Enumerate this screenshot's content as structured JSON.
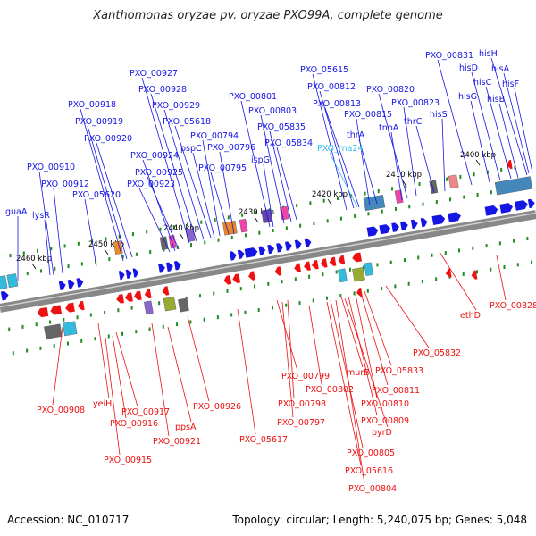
{
  "title": "Xanthomonas oryzae pv. oryzae PXO99A, complete genome",
  "accession": "Accession: NC_010717",
  "summary": "Topology: circular; Length: 5,240,075 bp; Genes: 5,048",
  "colors": {
    "forward_gene": "#1515e6",
    "reverse_gene": "#ee1111",
    "rna_label": "#33bbee",
    "backbone": "#888888",
    "tick": "#1f8a1f"
  },
  "kbp_ticks": [
    "2460 kbp",
    "2450 kbp",
    "2440 kbp",
    "2430 kbp",
    "2420 kbp",
    "2410 kbp",
    "2400 kbp"
  ],
  "top_labels": [
    {
      "text": "PXO_00927"
    },
    {
      "text": "PXO_00928"
    },
    {
      "text": "PXO_00929"
    },
    {
      "text": "PXO_05618"
    },
    {
      "text": "PXO_00794"
    },
    {
      "text": "pspC"
    },
    {
      "text": "PXO_00796"
    },
    {
      "text": "PXO_00795"
    },
    {
      "text": "PXO_00801"
    },
    {
      "text": "PXO_00803"
    },
    {
      "text": "PXO_05835"
    },
    {
      "text": "PXO_05834"
    },
    {
      "text": "ispG"
    },
    {
      "text": "PXO_05615"
    },
    {
      "text": "PXO_00812"
    },
    {
      "text": "PXO_00813"
    },
    {
      "text": "PXO_00815"
    },
    {
      "text": "PXO_00820"
    },
    {
      "text": "PXO_00823"
    },
    {
      "text": "PXO_00831"
    },
    {
      "text": "hisH"
    },
    {
      "text": "hisD"
    },
    {
      "text": "hisA"
    },
    {
      "text": "hisC"
    },
    {
      "text": "hisF"
    },
    {
      "text": "hisG"
    },
    {
      "text": "hisB"
    },
    {
      "text": "hisS"
    },
    {
      "text": "thrC"
    },
    {
      "text": "tnpA"
    },
    {
      "text": "thrA"
    },
    {
      "text": "PXO_rna24"
    },
    {
      "text": "PXO_00918"
    },
    {
      "text": "PXO_00919"
    },
    {
      "text": "PXO_00920"
    },
    {
      "text": "PXO_00924"
    },
    {
      "text": "PXO_00925"
    },
    {
      "text": "PXO_00923"
    },
    {
      "text": "PXO_00910"
    },
    {
      "text": "PXO_00912"
    },
    {
      "text": "PXO_05620"
    },
    {
      "text": "guaA"
    },
    {
      "text": "lysR"
    }
  ],
  "bottom_labels": [
    {
      "text": "PXO_00908"
    },
    {
      "text": "yeiH"
    },
    {
      "text": "PXO_00917"
    },
    {
      "text": "PXO_00916"
    },
    {
      "text": "PXO_00915"
    },
    {
      "text": "PXO_00921"
    },
    {
      "text": "ppsA"
    },
    {
      "text": "PXO_00926"
    },
    {
      "text": "PXO_05617"
    },
    {
      "text": "PXO_00797"
    },
    {
      "text": "PXO_00798"
    },
    {
      "text": "PXO_00799"
    },
    {
      "text": "PXO_00802"
    },
    {
      "text": "murB"
    },
    {
      "text": "PXO_05833"
    },
    {
      "text": "PXO_00811"
    },
    {
      "text": "PXO_00810"
    },
    {
      "text": "PXO_00809"
    },
    {
      "text": "pyrD"
    },
    {
      "text": "PXO_00805"
    },
    {
      "text": "PXO_05616"
    },
    {
      "text": "PXO_00804"
    },
    {
      "text": "PXO_05832"
    },
    {
      "text": "ethD"
    },
    {
      "text": "PXO_00828"
    }
  ]
}
